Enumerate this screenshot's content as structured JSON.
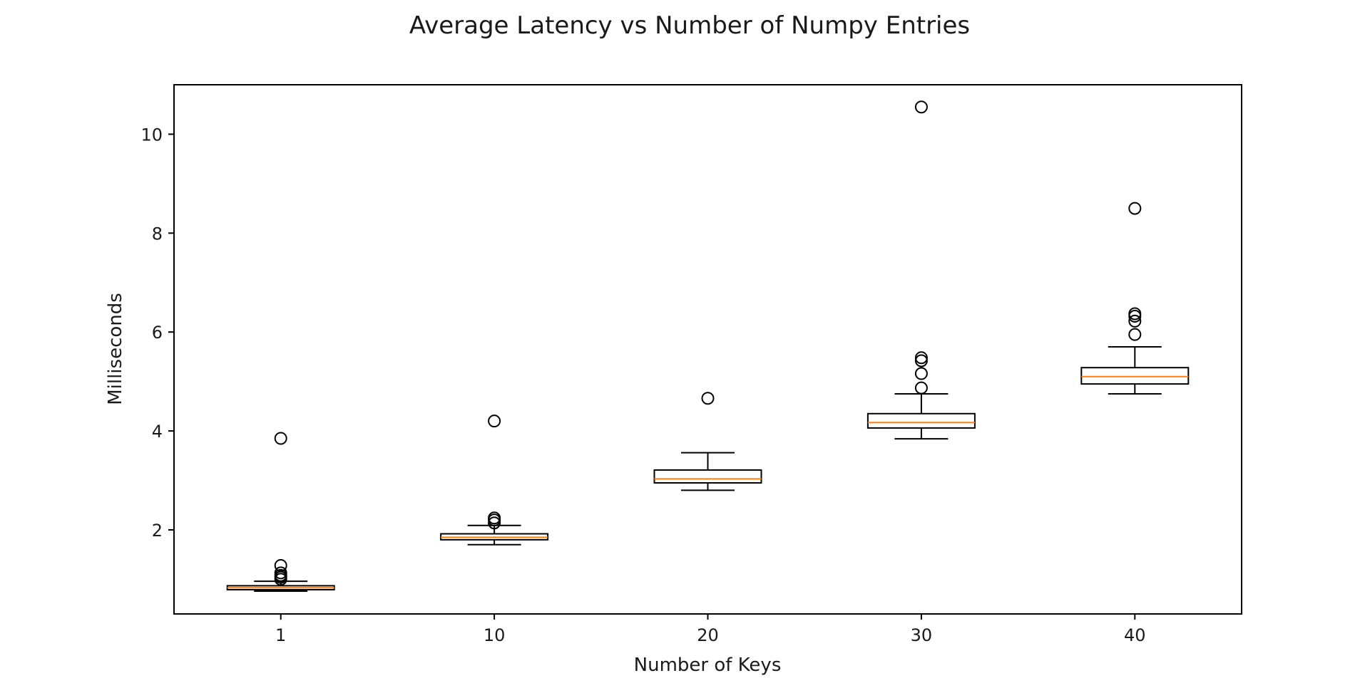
{
  "chart_data": {
    "type": "box",
    "title": "Average Latency vs Number of Numpy Entries",
    "xlabel": "Number of Keys",
    "ylabel": "Milliseconds",
    "ylim": [
      0.3,
      11.0
    ],
    "yticks": [
      2,
      4,
      6,
      8,
      10
    ],
    "categories": [
      "1",
      "10",
      "20",
      "30",
      "40"
    ],
    "grid": false,
    "colors": {
      "box": "#000000",
      "median": "#ff7f0e",
      "frame": "#000000"
    },
    "boxes": [
      {
        "category": "1",
        "whisker_low": 0.76,
        "q1": 0.79,
        "median": 0.83,
        "q3": 0.87,
        "whisker_high": 0.96,
        "outliers": [
          1.0,
          1.04,
          1.08,
          1.13,
          1.28,
          3.85
        ]
      },
      {
        "category": "10",
        "whisker_low": 1.7,
        "q1": 1.8,
        "median": 1.85,
        "q3": 1.92,
        "whisker_high": 2.09,
        "outliers": [
          2.14,
          2.2,
          2.24,
          4.2
        ]
      },
      {
        "category": "20",
        "whisker_low": 2.8,
        "q1": 2.95,
        "median": 3.03,
        "q3": 3.21,
        "whisker_high": 3.56,
        "outliers": [
          4.66
        ]
      },
      {
        "category": "30",
        "whisker_low": 3.84,
        "q1": 4.06,
        "median": 4.17,
        "q3": 4.35,
        "whisker_high": 4.75,
        "outliers": [
          4.87,
          5.16,
          5.42,
          5.48,
          10.55
        ]
      },
      {
        "category": "40",
        "whisker_low": 4.75,
        "q1": 4.95,
        "median": 5.1,
        "q3": 5.28,
        "whisker_high": 5.7,
        "outliers": [
          5.95,
          6.22,
          6.32,
          6.37,
          8.5
        ]
      }
    ]
  }
}
